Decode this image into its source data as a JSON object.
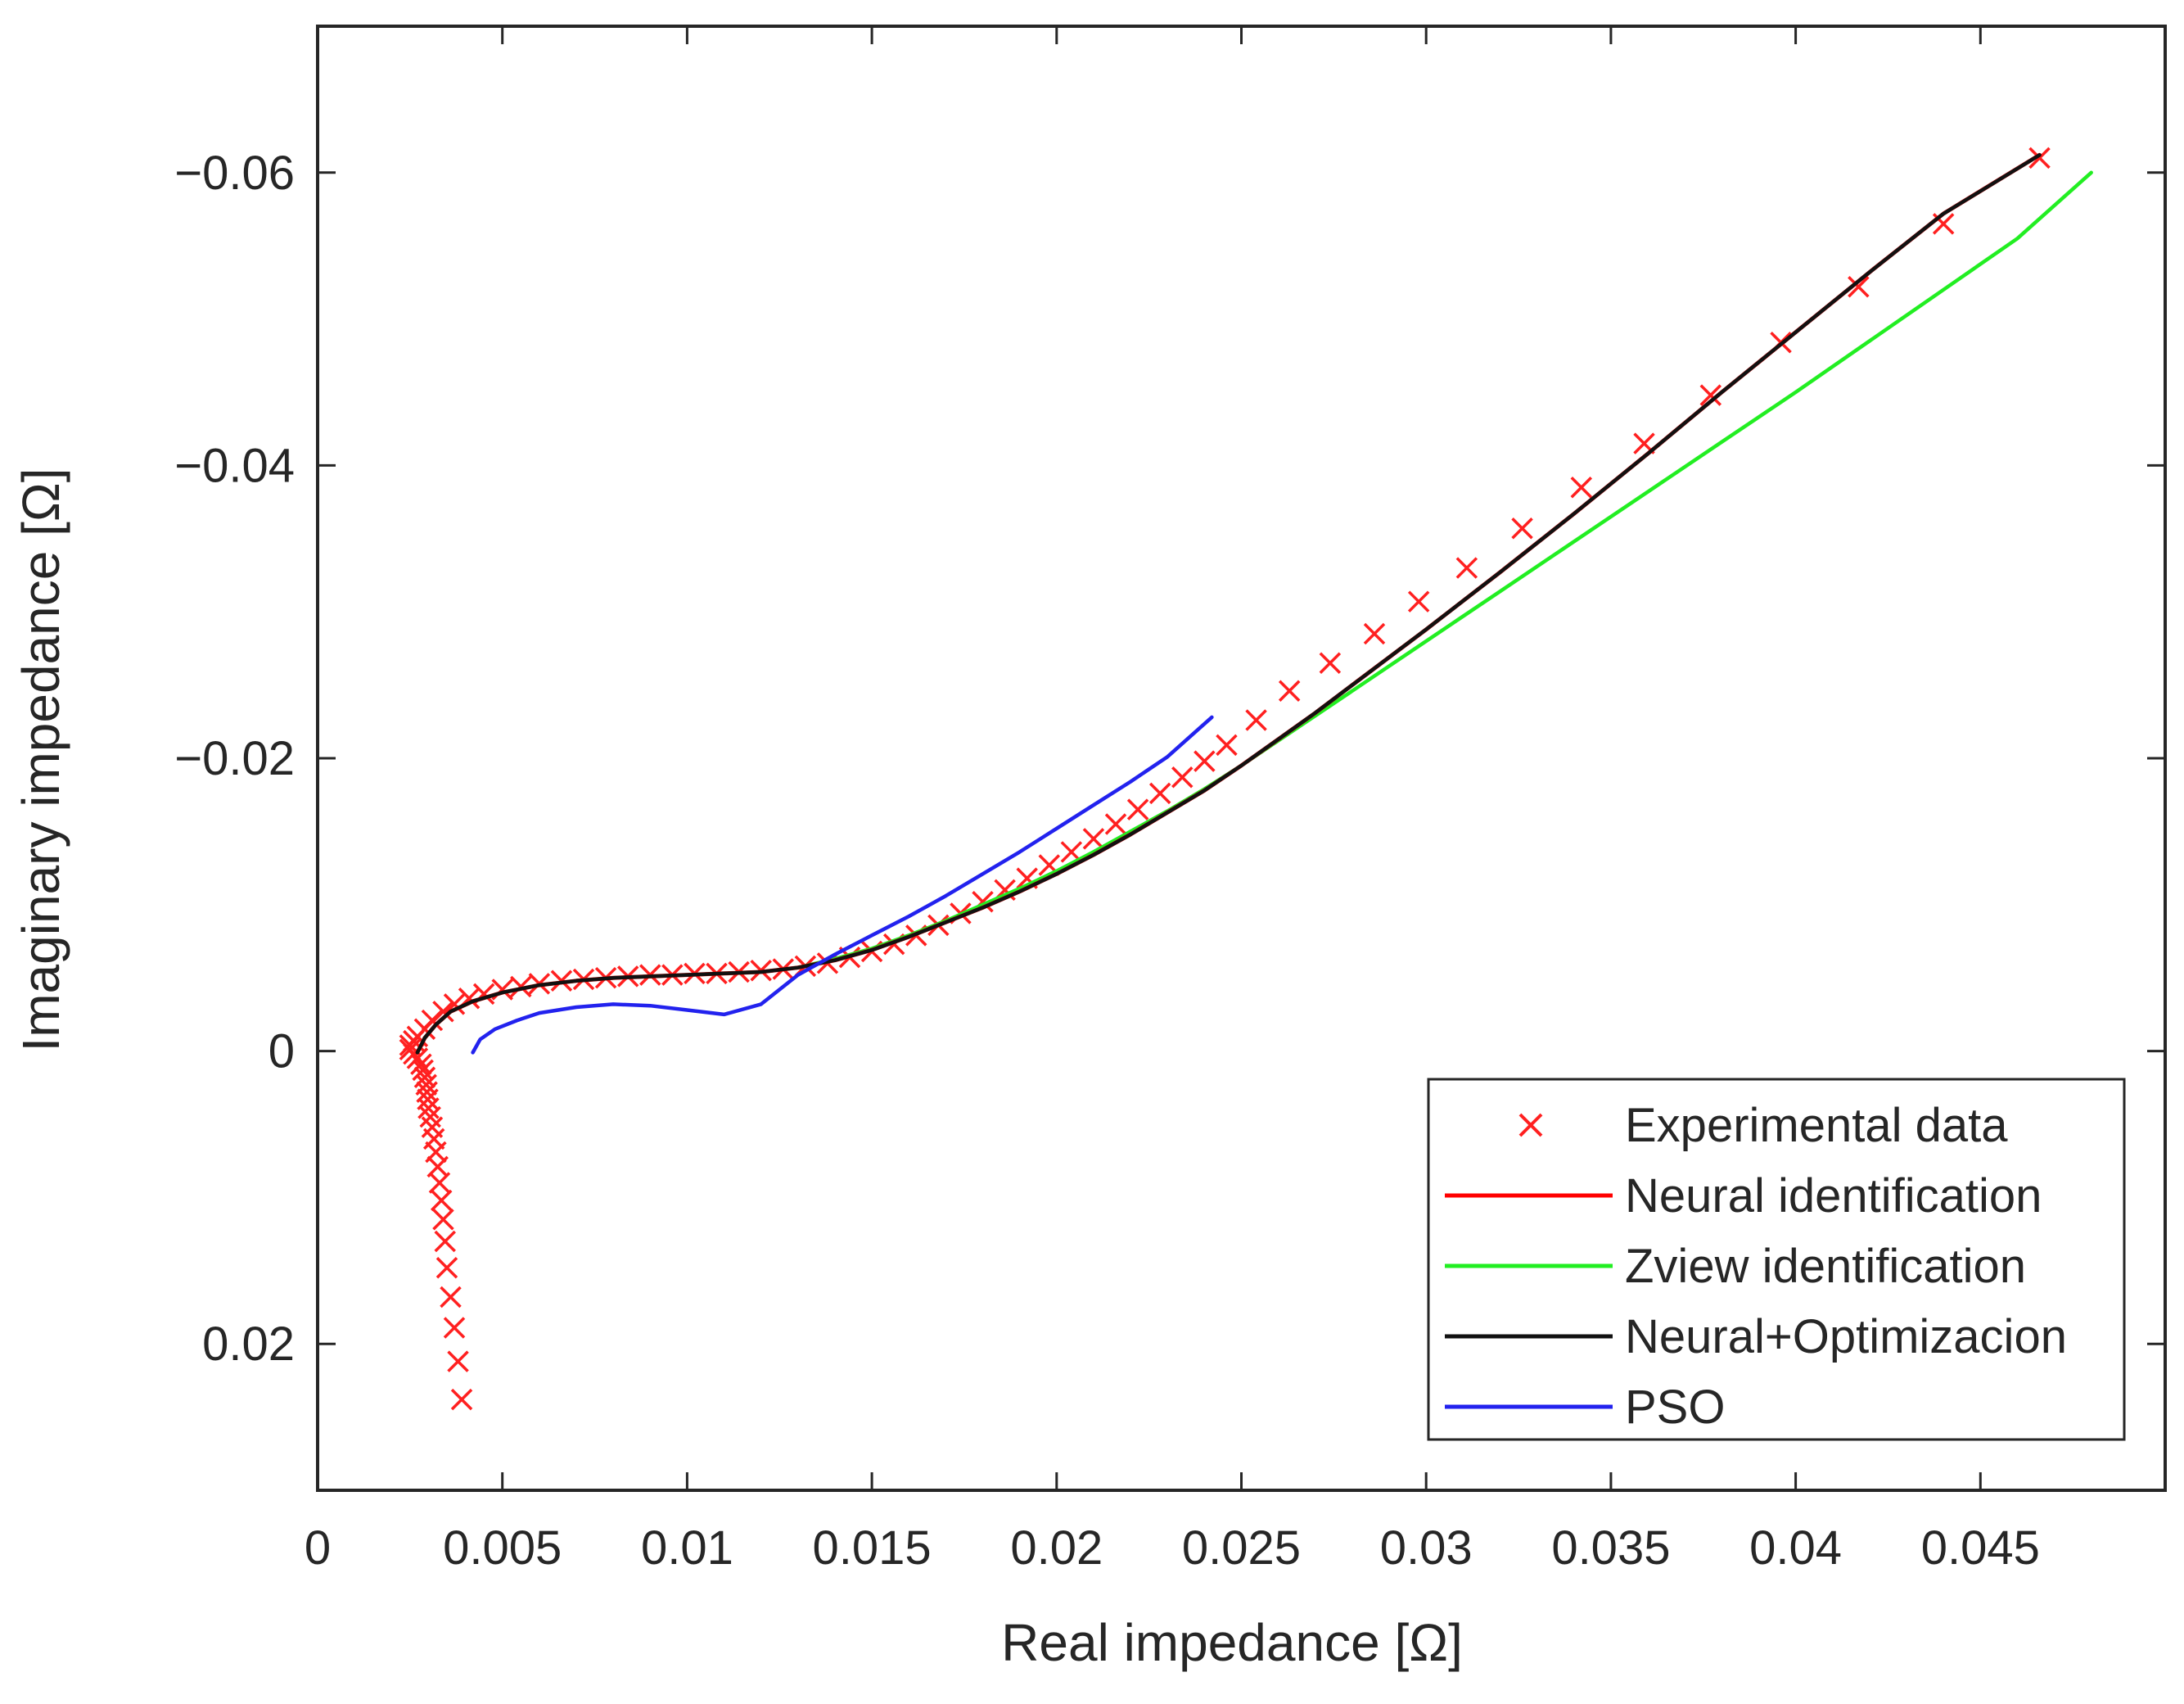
{
  "chart_data": {
    "type": "line",
    "xlabel": "Real impedance [Ω]",
    "ylabel": "Imaginary impedance [Ω]",
    "xlim": [
      0,
      0.05
    ],
    "ylim": [
      0.03,
      -0.07
    ],
    "y_axis_reversed": true,
    "grid": false,
    "legend_position": "bottom-right",
    "x_ticks": [
      0,
      0.005,
      0.01,
      0.015,
      0.02,
      0.025,
      0.03,
      0.035,
      0.04,
      0.045
    ],
    "x_tick_labels": [
      "0",
      "0.005",
      "0.01",
      "0.015",
      "0.02",
      "0.025",
      "0.03",
      "0.035",
      "0.04",
      "0.045"
    ],
    "y_ticks": [
      -0.06,
      -0.04,
      -0.02,
      0,
      0.02
    ],
    "y_tick_labels": [
      "−0.06",
      "−0.04",
      "−0.02",
      "0",
      "0.02"
    ],
    "colors": {
      "experimental": "#ff2020",
      "neural": "#ff0000",
      "zview": "#22ee22",
      "neural_opt": "#111111",
      "pso": "#2222ee"
    },
    "series": [
      {
        "name": "Experimental data",
        "kind": "scatter",
        "marker": "x",
        "color": "#ff2020",
        "x": [
          0.0039,
          0.0038,
          0.0037,
          0.0036,
          0.0035,
          0.00345,
          0.0034,
          0.00335,
          0.0033,
          0.00325,
          0.0032,
          0.00315,
          0.0031,
          0.00305,
          0.003,
          0.00298,
          0.00296,
          0.00294,
          0.0029,
          0.00285,
          0.0028,
          0.0027,
          0.0026,
          0.0025,
          0.0025,
          0.0026,
          0.0027,
          0.0029,
          0.0031,
          0.0034,
          0.0037,
          0.0041,
          0.0045,
          0.005,
          0.0055,
          0.006,
          0.0066,
          0.0072,
          0.0078,
          0.0084,
          0.009,
          0.0096,
          0.0102,
          0.0108,
          0.0114,
          0.012,
          0.0126,
          0.0132,
          0.0138,
          0.0144,
          0.015,
          0.0156,
          0.0162,
          0.0168,
          0.0174,
          0.018,
          0.0186,
          0.0192,
          0.0198,
          0.0204,
          0.021,
          0.0216,
          0.0222,
          0.0228,
          0.0234,
          0.024,
          0.0246,
          0.0254,
          0.0263,
          0.0274,
          0.0286,
          0.0298,
          0.0311,
          0.0326,
          0.0342,
          0.0359,
          0.0377,
          0.0396,
          0.0417,
          0.044,
          0.0466
        ],
        "y": [
          0.0238,
          0.0212,
          0.0189,
          0.0168,
          0.0148,
          0.013,
          0.0115,
          0.0102,
          0.009,
          0.0079,
          0.0069,
          0.006,
          0.0052,
          0.0045,
          0.0039,
          0.0033,
          0.0028,
          0.0023,
          0.0018,
          0.0013,
          0.0009,
          0.0005,
          0.0002,
          -0.0001,
          -0.0004,
          -0.0007,
          -0.001,
          -0.0015,
          -0.0021,
          -0.0027,
          -0.0032,
          -0.0036,
          -0.0039,
          -0.0042,
          -0.0044,
          -0.0046,
          -0.0048,
          -0.0049,
          -0.005,
          -0.0051,
          -0.0052,
          -0.0052,
          -0.0053,
          -0.0053,
          -0.0054,
          -0.0055,
          -0.0056,
          -0.0058,
          -0.006,
          -0.0064,
          -0.0068,
          -0.0073,
          -0.0079,
          -0.0086,
          -0.0094,
          -0.0102,
          -0.011,
          -0.0118,
          -0.0127,
          -0.0136,
          -0.0145,
          -0.0155,
          -0.0165,
          -0.0176,
          -0.0187,
          -0.0198,
          -0.0209,
          -0.0226,
          -0.0246,
          -0.0265,
          -0.0285,
          -0.0307,
          -0.033,
          -0.0357,
          -0.0385,
          -0.0415,
          -0.0448,
          -0.0484,
          -0.0522,
          -0.0565,
          -0.061
        ]
      },
      {
        "name": "Neural identification",
        "kind": "line",
        "color": "#ff0000",
        "x": [
          0.0027,
          0.0029,
          0.0032,
          0.0036,
          0.0042,
          0.005,
          0.006,
          0.007,
          0.008,
          0.009,
          0.01,
          0.011,
          0.012,
          0.013,
          0.014,
          0.015,
          0.016,
          0.017,
          0.018,
          0.019,
          0.02,
          0.021,
          0.022,
          0.023,
          0.024,
          0.025,
          0.026,
          0.027,
          0.028,
          0.03,
          0.032,
          0.034,
          0.036,
          0.038,
          0.04,
          0.042,
          0.044,
          0.0466
        ],
        "y": [
          0.0001,
          -0.0009,
          -0.0018,
          -0.0027,
          -0.0034,
          -0.004,
          -0.0045,
          -0.0048,
          -0.005,
          -0.0051,
          -0.0052,
          -0.0053,
          -0.0054,
          -0.0057,
          -0.0062,
          -0.0069,
          -0.0078,
          -0.0088,
          -0.0098,
          -0.0109,
          -0.0121,
          -0.0134,
          -0.0148,
          -0.0163,
          -0.0178,
          -0.0195,
          -0.0213,
          -0.0231,
          -0.025,
          -0.0288,
          -0.0327,
          -0.0367,
          -0.0408,
          -0.045,
          -0.0491,
          -0.0532,
          -0.0572,
          -0.0612
        ]
      },
      {
        "name": "Zview identification",
        "kind": "line",
        "color": "#22ee22",
        "x": [
          0.0027,
          0.0029,
          0.0032,
          0.0036,
          0.0042,
          0.005,
          0.006,
          0.007,
          0.008,
          0.009,
          0.01,
          0.011,
          0.012,
          0.013,
          0.014,
          0.015,
          0.016,
          0.017,
          0.018,
          0.019,
          0.02,
          0.021,
          0.022,
          0.023,
          0.024,
          0.025,
          0.026,
          0.027,
          0.028,
          0.03,
          0.032,
          0.034,
          0.036,
          0.038,
          0.04,
          0.042,
          0.044,
          0.046,
          0.048
        ],
        "y": [
          0.0001,
          -0.0009,
          -0.0018,
          -0.0027,
          -0.0034,
          -0.004,
          -0.0045,
          -0.0048,
          -0.005,
          -0.0051,
          -0.0052,
          -0.0053,
          -0.0054,
          -0.0057,
          -0.0063,
          -0.007,
          -0.0079,
          -0.0089,
          -0.01,
          -0.0111,
          -0.0123,
          -0.0136,
          -0.015,
          -0.0164,
          -0.0179,
          -0.0195,
          -0.0212,
          -0.0229,
          -0.0246,
          -0.028,
          -0.0314,
          -0.0348,
          -0.0382,
          -0.0416,
          -0.045,
          -0.0485,
          -0.052,
          -0.0555,
          -0.06
        ]
      },
      {
        "name": "Neural+Optimizacion",
        "kind": "line",
        "color": "#111111",
        "x": [
          0.0027,
          0.0029,
          0.0032,
          0.0036,
          0.0042,
          0.005,
          0.006,
          0.007,
          0.008,
          0.009,
          0.01,
          0.011,
          0.012,
          0.013,
          0.014,
          0.015,
          0.016,
          0.017,
          0.018,
          0.019,
          0.02,
          0.021,
          0.022,
          0.023,
          0.024,
          0.025,
          0.026,
          0.027,
          0.028,
          0.03,
          0.032,
          0.034,
          0.036,
          0.038,
          0.04,
          0.042,
          0.044,
          0.0466
        ],
        "y": [
          0.0001,
          -0.0009,
          -0.0018,
          -0.0027,
          -0.0034,
          -0.004,
          -0.0045,
          -0.0048,
          -0.005,
          -0.0051,
          -0.0052,
          -0.0053,
          -0.0054,
          -0.0057,
          -0.0062,
          -0.0069,
          -0.0078,
          -0.0088,
          -0.0098,
          -0.0109,
          -0.0121,
          -0.0134,
          -0.0148,
          -0.0163,
          -0.0178,
          -0.0195,
          -0.0213,
          -0.0231,
          -0.025,
          -0.0288,
          -0.0327,
          -0.0367,
          -0.0408,
          -0.045,
          -0.0491,
          -0.0532,
          -0.0572,
          -0.0612
        ]
      },
      {
        "name": "PSO",
        "kind": "line",
        "color": "#2222ee",
        "x": [
          0.0042,
          0.0044,
          0.0048,
          0.0054,
          0.006,
          0.007,
          0.008,
          0.009,
          0.01,
          0.011,
          0.012,
          0.013,
          0.014,
          0.015,
          0.016,
          0.017,
          0.018,
          0.019,
          0.02,
          0.021,
          0.022,
          0.023,
          0.0242
        ],
        "y": [
          0.0001,
          -0.0008,
          -0.0015,
          -0.0021,
          -0.0026,
          -0.003,
          -0.0032,
          -0.0031,
          -0.0028,
          -0.0025,
          -0.0032,
          -0.0052,
          -0.0066,
          -0.0079,
          -0.0092,
          -0.0106,
          -0.0121,
          -0.0136,
          -0.0152,
          -0.0168,
          -0.0184,
          -0.0201,
          -0.0228
        ]
      }
    ]
  }
}
